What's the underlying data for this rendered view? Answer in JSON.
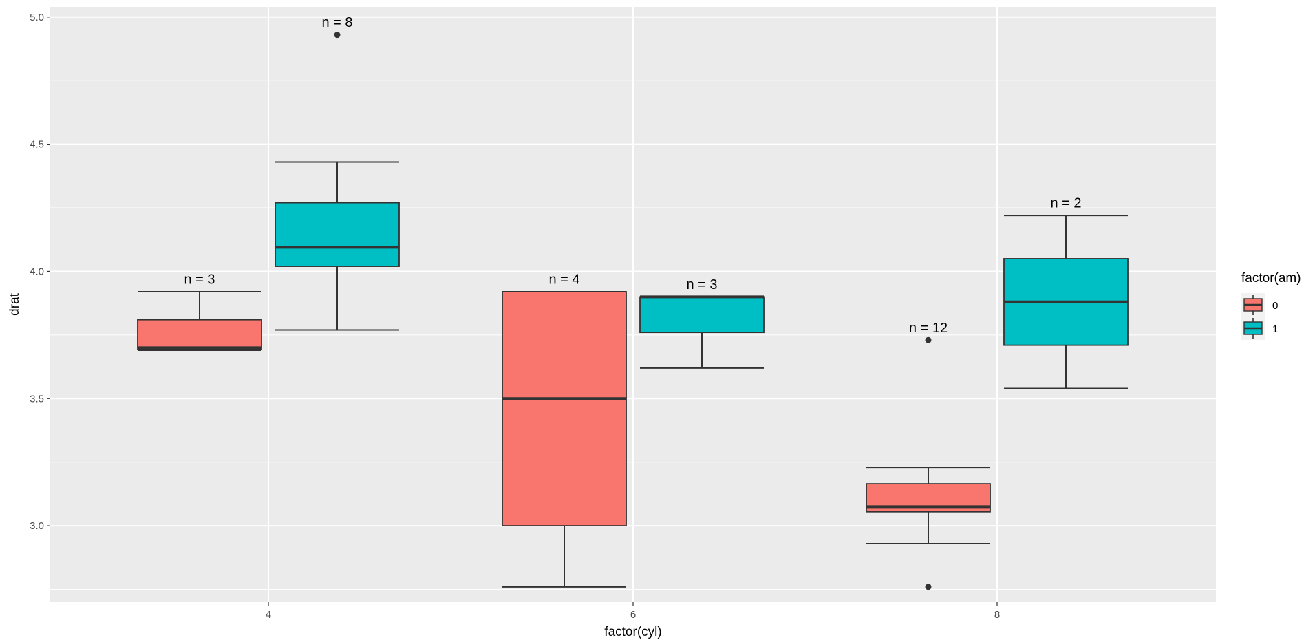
{
  "chart_data": {
    "type": "boxplot",
    "xlabel": "factor(cyl)",
    "ylabel": "drat",
    "categories": [
      "4",
      "6",
      "8"
    ],
    "ylim": [
      2.7,
      5.04
    ],
    "yticks": [
      3.0,
      3.5,
      4.0,
      4.5,
      5.0
    ],
    "ytick_labels": [
      "3.0",
      "3.5",
      "4.0",
      "4.5",
      "5.0"
    ],
    "grid": true,
    "legend": {
      "title": "factor(am)",
      "position": "right",
      "entries": [
        {
          "label": "0",
          "color": "#F8766D"
        },
        {
          "label": "1",
          "color": "#00BFC4"
        }
      ]
    },
    "groups": [
      {
        "category": "4",
        "am": "0",
        "color": "#F8766D",
        "whisker_low": 3.69,
        "q1": 3.695,
        "median": 3.7,
        "q3": 3.81,
        "whisker_high": 3.92,
        "outliers": [],
        "label": "n = 3",
        "label_y": 3.97
      },
      {
        "category": "4",
        "am": "1",
        "color": "#00BFC4",
        "whisker_low": 3.77,
        "q1": 4.02,
        "median": 4.095,
        "q3": 4.27,
        "whisker_high": 4.43,
        "outliers": [
          4.93
        ],
        "label": "n = 8",
        "label_y": 4.98
      },
      {
        "category": "6",
        "am": "0",
        "color": "#F8766D",
        "whisker_low": 2.76,
        "q1": 3.0,
        "median": 3.5,
        "q3": 3.92,
        "whisker_high": 3.92,
        "outliers": [],
        "label": "n = 4",
        "label_y": 3.97
      },
      {
        "category": "6",
        "am": "1",
        "color": "#00BFC4",
        "whisker_low": 3.62,
        "q1": 3.76,
        "median": 3.9,
        "q3": 3.9,
        "whisker_high": 3.9,
        "outliers": [],
        "label": "n = 3",
        "label_y": 3.95
      },
      {
        "category": "8",
        "am": "0",
        "color": "#F8766D",
        "whisker_low": 2.93,
        "q1": 3.055,
        "median": 3.075,
        "q3": 3.165,
        "whisker_high": 3.23,
        "outliers": [
          3.73,
          2.76
        ],
        "label": "n = 12",
        "label_y": 3.78
      },
      {
        "category": "8",
        "am": "1",
        "color": "#00BFC4",
        "whisker_low": 3.54,
        "q1": 3.71,
        "median": 3.88,
        "q3": 4.05,
        "whisker_high": 4.22,
        "outliers": [],
        "label": "n = 2",
        "label_y": 4.27
      }
    ]
  }
}
